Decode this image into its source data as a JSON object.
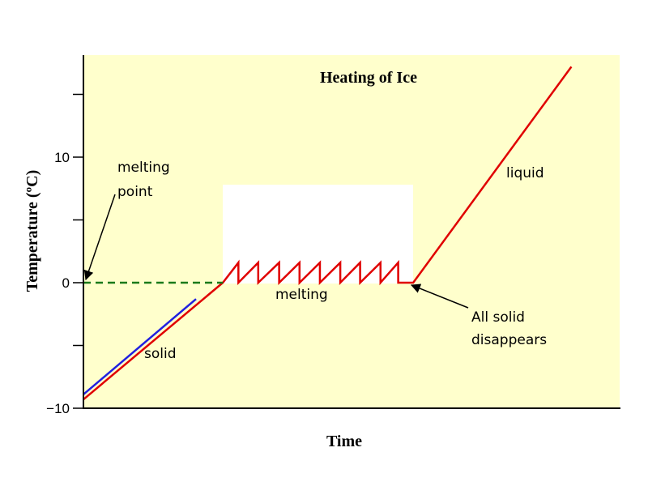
{
  "chart_data": {
    "type": "line",
    "title": "Heating of Ice",
    "x_label": "Time",
    "y_label": "Temperature (ºC)",
    "xlim": [
      0,
      100
    ],
    "ylim": [
      -10,
      18
    ],
    "yticks": [
      {
        "value": -10,
        "label": "−10"
      },
      0,
      10
    ],
    "yminor_ticks": [
      -5,
      5,
      15
    ],
    "background": "#ffffcc",
    "series": [
      {
        "color": "#e00000",
        "x": [
          0,
          26,
          28.9,
          28.9,
          32.6,
          32.6,
          36.5,
          36.5,
          40.3,
          40.3,
          44.1,
          44.1,
          47.9,
          47.9,
          51.6,
          51.6,
          55.4,
          55.4,
          58.7,
          58.7,
          61.5,
          91
        ],
        "values": [
          -9.3,
          0,
          1.6,
          0,
          1.6,
          0,
          1.6,
          0,
          1.6,
          0,
          1.6,
          0,
          1.6,
          0,
          1.6,
          0,
          1.6,
          0,
          1.6,
          0,
          0,
          17.2
        ]
      },
      {
        "color": "#2020e0",
        "x": [
          0,
          21
        ],
        "values": [
          -8.9,
          -1.3
        ]
      },
      {
        "color": "#1a7a1a",
        "dash": true,
        "x": [
          0,
          26
        ],
        "values": [
          0,
          0
        ]
      }
    ],
    "annotations": [
      "melting",
      "point",
      "solid",
      "melting",
      "liquid",
      "All solid",
      "disappears"
    ]
  }
}
